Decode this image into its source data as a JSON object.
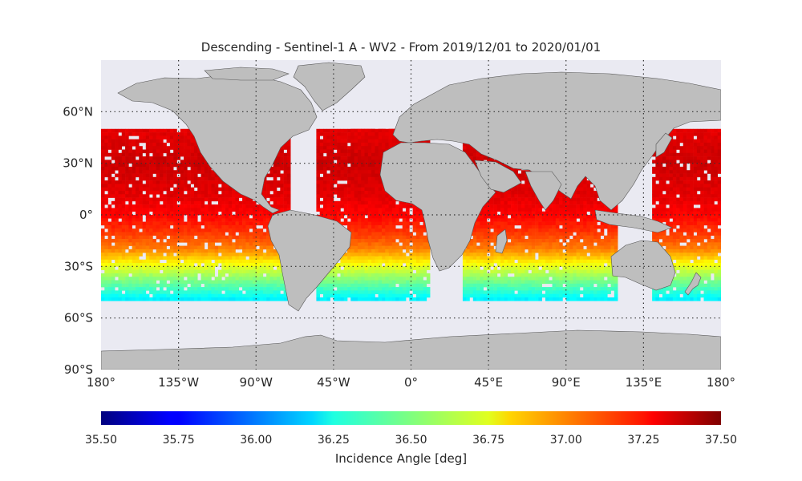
{
  "title": "Descending - Sentinel-1 A - WV2 - From 2019/12/01 to 2020/01/01",
  "colors": {
    "ocean": "#eaeaf2",
    "land": "#bebebe",
    "coast": "#555555",
    "grid": "#333333"
  },
  "map": {
    "projection": "equirectangular",
    "lon_range": [
      -180,
      180
    ],
    "lat_range": [
      -90,
      90
    ],
    "lat_ticks": [
      {
        "value": 60,
        "label": "60°N"
      },
      {
        "value": 30,
        "label": "30°N"
      },
      {
        "value": 0,
        "label": "0°"
      },
      {
        "value": -30,
        "label": "30°S"
      },
      {
        "value": -60,
        "label": "60°S"
      },
      {
        "value": -90,
        "label": "90°S"
      }
    ],
    "lon_ticks": [
      {
        "value": -180,
        "label": "180°"
      },
      {
        "value": -135,
        "label": "135°W"
      },
      {
        "value": -90,
        "label": "90°W"
      },
      {
        "value": -45,
        "label": "45°W"
      },
      {
        "value": 0,
        "label": "0°"
      },
      {
        "value": 45,
        "label": "45°E"
      },
      {
        "value": 90,
        "label": "90°E"
      },
      {
        "value": 135,
        "label": "135°E"
      },
      {
        "value": 180,
        "label": "180°"
      }
    ],
    "gridlines": "dotted"
  },
  "chart_data": {
    "type": "heatmap",
    "variable": "incidence_angle",
    "colormap": "jet",
    "data_lat_range": [
      -50,
      50
    ],
    "regions_lon": [
      [
        -180,
        -70
      ],
      [
        -55,
        -10
      ],
      [
        -35,
        10
      ],
      [
        30,
        55
      ],
      [
        52,
        120
      ],
      [
        140,
        180
      ]
    ],
    "lat_profile": [
      {
        "lat": 50,
        "value": 37.3
      },
      {
        "lat": 30,
        "value": 37.35
      },
      {
        "lat": 10,
        "value": 37.3
      },
      {
        "lat": 0,
        "value": 37.25
      },
      {
        "lat": -10,
        "value": 37.15
      },
      {
        "lat": -20,
        "value": 37.0
      },
      {
        "lat": -30,
        "value": 36.7
      },
      {
        "lat": -40,
        "value": 36.45
      },
      {
        "lat": -50,
        "value": 36.2
      }
    ],
    "colorbar": {
      "label": "Incidence Angle [deg]",
      "vmin": 35.5,
      "vmax": 37.5,
      "ticks": [
        "35.50",
        "35.75",
        "36.00",
        "36.25",
        "36.50",
        "36.75",
        "37.00",
        "37.25",
        "37.50"
      ]
    }
  }
}
